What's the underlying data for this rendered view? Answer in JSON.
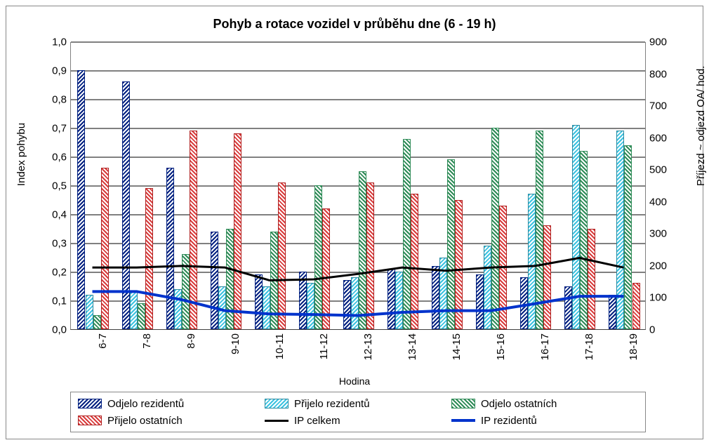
{
  "chart": {
    "type": "bar-line-combo",
    "title": "Pohyb a rotace vozidel v průběhu dne (6 - 19 h)",
    "title_fontsize": 18,
    "background_color": "#ffffff",
    "grid_color": "#808080",
    "border_color": "#888888",
    "categories": [
      "6-7",
      "7-8",
      "8-9",
      "9-10",
      "10-11",
      "11-12",
      "12-13",
      "13-14",
      "14-15",
      "15-16",
      "16-17",
      "17-18",
      "18-19"
    ],
    "x_label": "Hodina",
    "y_left": {
      "title": "Index pohybu",
      "min": 0.0,
      "max": 1.0,
      "step": 0.1,
      "ticks": [
        "0,0",
        "0,1",
        "0,2",
        "0,3",
        "0,4",
        "0,5",
        "0,6",
        "0,7",
        "0,8",
        "0,9",
        "1,0"
      ]
    },
    "y_right": {
      "title": "Příjezd ~ odjezd OA/ hod.",
      "min": 0,
      "max": 900,
      "step": 100,
      "ticks": [
        "0",
        "100",
        "200",
        "300",
        "400",
        "500",
        "600",
        "700",
        "800",
        "900"
      ]
    },
    "bars": {
      "bar_group_width_ratio": 0.7,
      "series": [
        {
          "name": "Odjelo rezidentů",
          "color": "#002080",
          "hatch": "135",
          "values": [
            0.9,
            0.86,
            0.56,
            0.34,
            0.19,
            0.2,
            0.17,
            0.21,
            0.22,
            0.19,
            0.18,
            0.15,
            0.12
          ]
        },
        {
          "name": "Přijelo rezidentů",
          "color": "#3cc2e0",
          "hatch": "135",
          "values": [
            0.12,
            0.13,
            0.14,
            0.15,
            0.15,
            0.16,
            0.18,
            0.2,
            0.25,
            0.29,
            0.47,
            0.71,
            0.69
          ]
        },
        {
          "name": "Odjelo ostatních",
          "color": "#2e8b57",
          "hatch": "45",
          "values": [
            0.05,
            0.09,
            0.26,
            0.35,
            0.34,
            0.5,
            0.55,
            0.66,
            0.59,
            0.7,
            0.69,
            0.62,
            0.64
          ]
        },
        {
          "name": "Přijelo ostatních",
          "color": "#d93c3c",
          "hatch": "45",
          "values": [
            0.56,
            0.49,
            0.69,
            0.68,
            0.51,
            0.42,
            0.51,
            0.47,
            0.45,
            0.43,
            0.36,
            0.35,
            0.16
          ]
        }
      ]
    },
    "lines": {
      "series": [
        {
          "name": "IP celkem",
          "color": "#000000",
          "width": 3,
          "values": [
            195,
            195,
            200,
            195,
            155,
            158,
            175,
            195,
            185,
            195,
            200,
            225,
            195
          ]
        },
        {
          "name": "IP rezidentů",
          "color": "#0033cc",
          "width": 4,
          "values": [
            120,
            120,
            95,
            60,
            50,
            48,
            45,
            55,
            60,
            60,
            82,
            105,
            105
          ]
        }
      ]
    },
    "legend": {
      "items": [
        {
          "label": "Odjelo rezidentů",
          "type": "bar",
          "class": "hatch-darkblue"
        },
        {
          "label": "Přijelo rezidentů",
          "type": "bar",
          "class": "hatch-cyan"
        },
        {
          "label": "Odjelo ostatních",
          "type": "bar",
          "class": "hatch-green"
        },
        {
          "label": "Přijelo ostatních",
          "type": "bar",
          "class": "hatch-red"
        },
        {
          "label": "IP celkem",
          "type": "line",
          "class": "black"
        },
        {
          "label": "IP rezidentů",
          "type": "line",
          "class": "blue"
        }
      ]
    }
  }
}
